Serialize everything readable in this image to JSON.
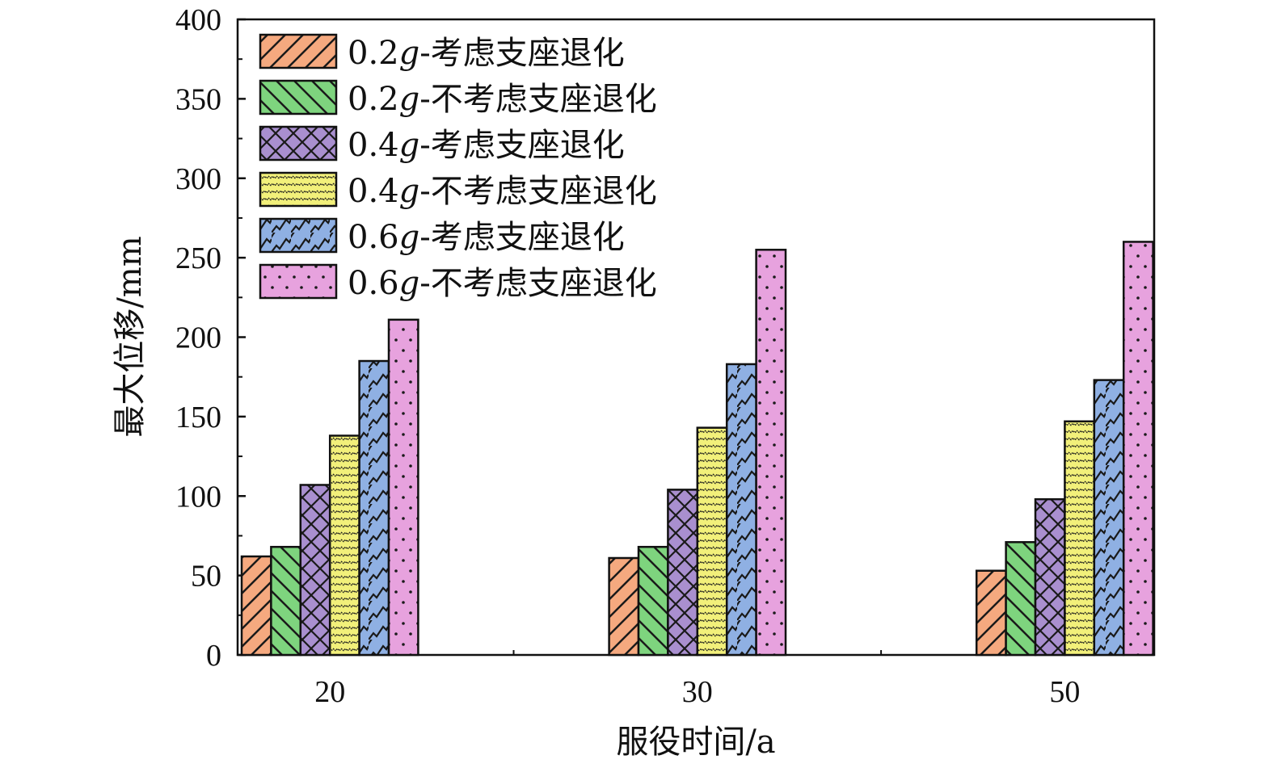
{
  "chart_data": {
    "type": "bar",
    "xlabel": "服役时间/a",
    "ylabel": "最大位移/mm",
    "ylim": [
      0,
      400
    ],
    "yticks": [
      0,
      50,
      100,
      150,
      200,
      250,
      300,
      350,
      400
    ],
    "categories": [
      "20",
      "30",
      "50"
    ],
    "grid": false,
    "legend_position": "top-left",
    "series": [
      {
        "name": "0.2g-考虑支座退化",
        "label_prefix": "0.2",
        "label_g": "g",
        "label_suffix": "-考虑支座退化",
        "color": "#f5a97f",
        "pattern": "diagonal-forward",
        "values": [
          62,
          61,
          53
        ]
      },
      {
        "name": "0.2g-不考虑支座退化",
        "label_prefix": "0.2",
        "label_g": "g",
        "label_suffix": "-不考虑支座退化",
        "color": "#7ed47e",
        "pattern": "diagonal-backward",
        "values": [
          68,
          68,
          71
        ]
      },
      {
        "name": "0.4g-考虑支座退化",
        "label_prefix": "0.4",
        "label_g": "g",
        "label_suffix": "-考虑支座退化",
        "color": "#a98fcf",
        "pattern": "crosshatch",
        "values": [
          107,
          104,
          98
        ]
      },
      {
        "name": "0.4g-不考虑支座退化",
        "label_prefix": "0.4",
        "label_g": "g",
        "label_suffix": "-不考虑支座退化",
        "color": "#f2f07a",
        "pattern": "wave",
        "values": [
          138,
          143,
          147
        ]
      },
      {
        "name": "0.6g-考虑支座退化",
        "label_prefix": "0.6",
        "label_g": "g",
        "label_suffix": "-考虑支座退化",
        "color": "#8fb0e3",
        "pattern": "zigzag",
        "values": [
          185,
          183,
          173
        ]
      },
      {
        "name": "0.6g-不考虑支座退化",
        "label_prefix": "0.6",
        "label_g": "g",
        "label_suffix": "-不考虑支座退化",
        "color": "#e7a2de",
        "pattern": "dots",
        "values": [
          211,
          255,
          260
        ]
      }
    ]
  }
}
